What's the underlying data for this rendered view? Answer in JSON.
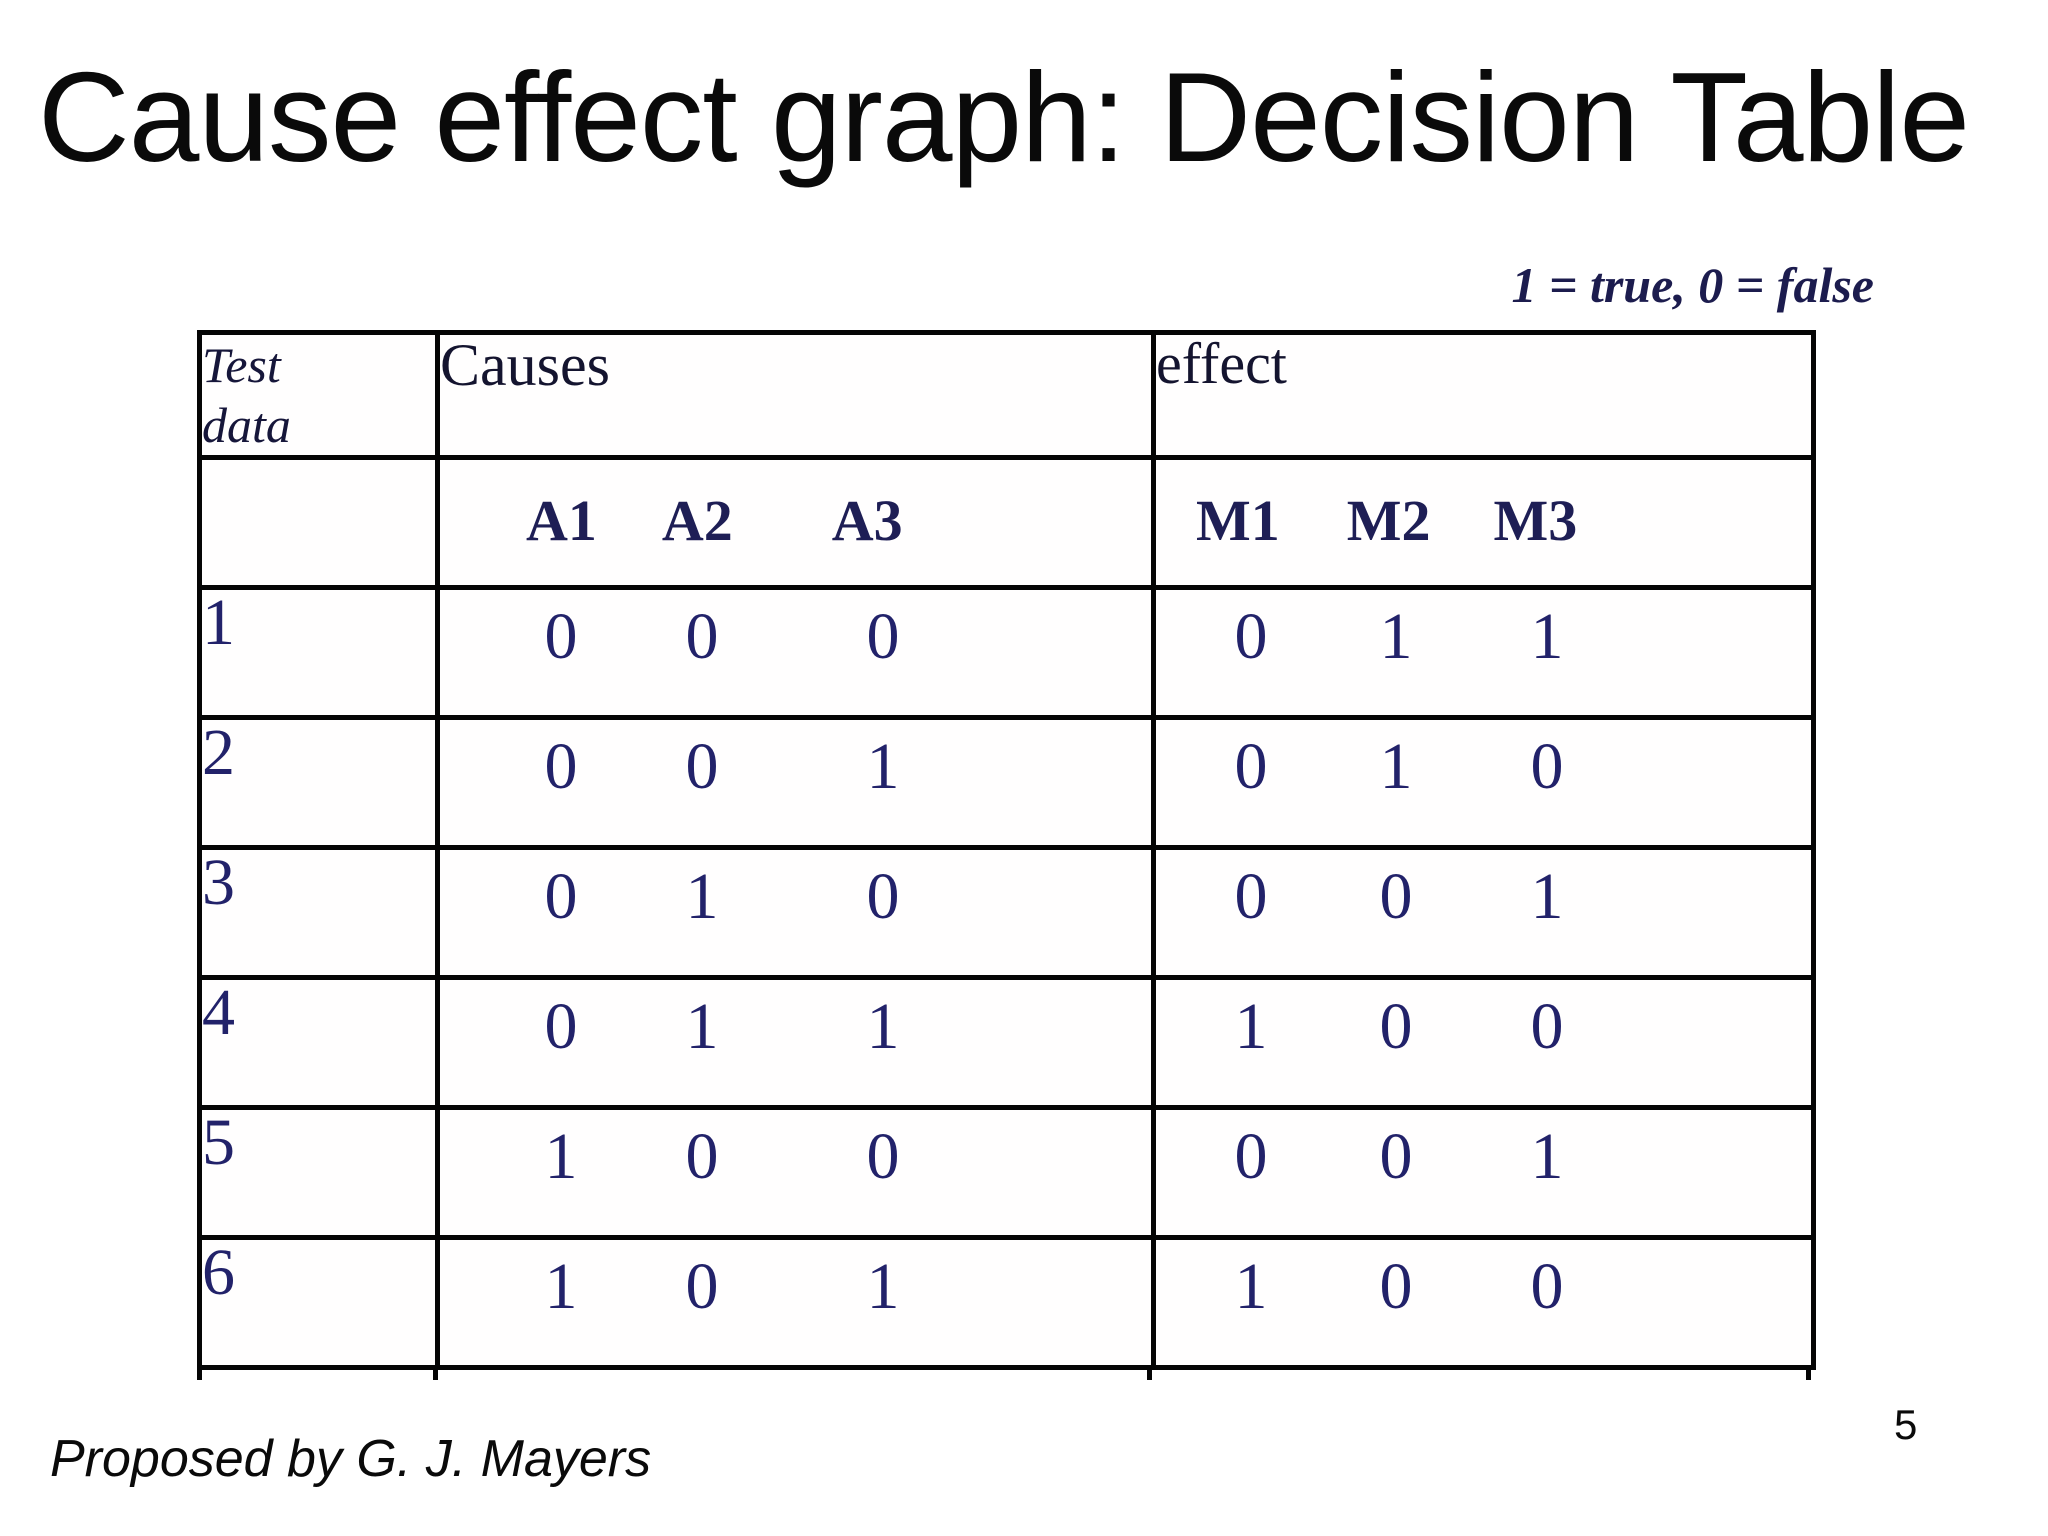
{
  "title": "Cause effect graph: Decision Table",
  "legend": "1 = true, 0 = false",
  "table": {
    "col1_header": "Test data",
    "col2_header": "Causes",
    "col3_header": "effect",
    "cause_labels": [
      "A1",
      "A2",
      "A3"
    ],
    "effect_labels": [
      "M1",
      "M2",
      "M3"
    ],
    "rows": [
      {
        "test": "1",
        "causes": [
          "0",
          "0",
          "0"
        ],
        "effects": [
          "0",
          "1",
          "1"
        ]
      },
      {
        "test": "2",
        "causes": [
          "0",
          "0",
          "1"
        ],
        "effects": [
          "0",
          "1",
          "0"
        ]
      },
      {
        "test": "3",
        "causes": [
          "0",
          "1",
          "0"
        ],
        "effects": [
          "0",
          "0",
          "1"
        ]
      },
      {
        "test": "4",
        "causes": [
          "0",
          "1",
          "1"
        ],
        "effects": [
          "1",
          "0",
          "0"
        ]
      },
      {
        "test": "5",
        "causes": [
          "1",
          "0",
          "0"
        ],
        "effects": [
          "0",
          "0",
          "1"
        ]
      },
      {
        "test": "6",
        "causes": [
          "1",
          "0",
          "1"
        ],
        "effects": [
          "1",
          "0",
          "0"
        ]
      }
    ]
  },
  "footer": {
    "credit": "Proposed by G. J. Mayers",
    "page_number": "5"
  },
  "colors": {
    "background": "#ffffff",
    "title_text": "#0a0a0a",
    "table_border": "#050505",
    "table_header_ink": "#14142f",
    "table_digit_ink": "#22226a",
    "legend_ink": "#1c1c4e"
  }
}
